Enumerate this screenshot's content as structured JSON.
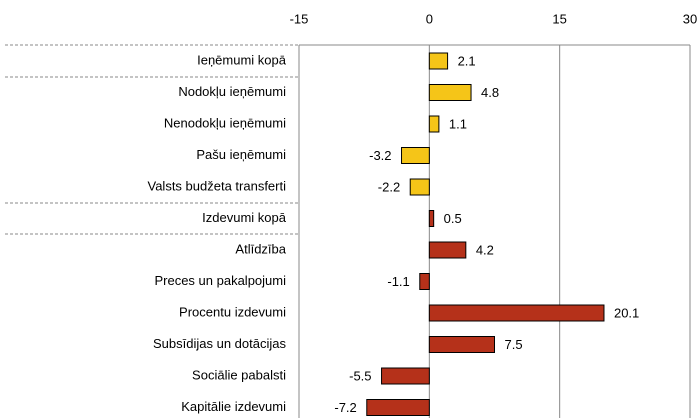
{
  "chart_data": {
    "type": "barh",
    "categories": [
      "Ieņēmumi kopā",
      "Nodokļu ieņēmumi",
      "Nenodokļu ieņēmumi",
      "Pašu ieņēmumi",
      "Valsts budžeta transferti",
      "Izdevumi kopā",
      "Atlīdzība",
      "Preces un pakalpojumi",
      "Procentu izdevumi",
      "Subsīdijas un dotācijas",
      "Sociālie pabalsti",
      "Kapitālie izdevumi"
    ],
    "values": [
      2.1,
      4.8,
      1.1,
      -3.2,
      -2.2,
      0.5,
      4.2,
      -1.1,
      20.1,
      7.5,
      -5.5,
      -7.2
    ],
    "colors": [
      "#f5c518",
      "#f5c518",
      "#f5c518",
      "#f5c518",
      "#f5c518",
      "#b5311a",
      "#b5311a",
      "#b5311a",
      "#b5311a",
      "#b5311a",
      "#b5311a",
      "#b5311a"
    ],
    "xlim": [
      -15,
      30
    ],
    "xticks": [
      -15,
      0,
      15,
      30
    ],
    "grid": true
  }
}
